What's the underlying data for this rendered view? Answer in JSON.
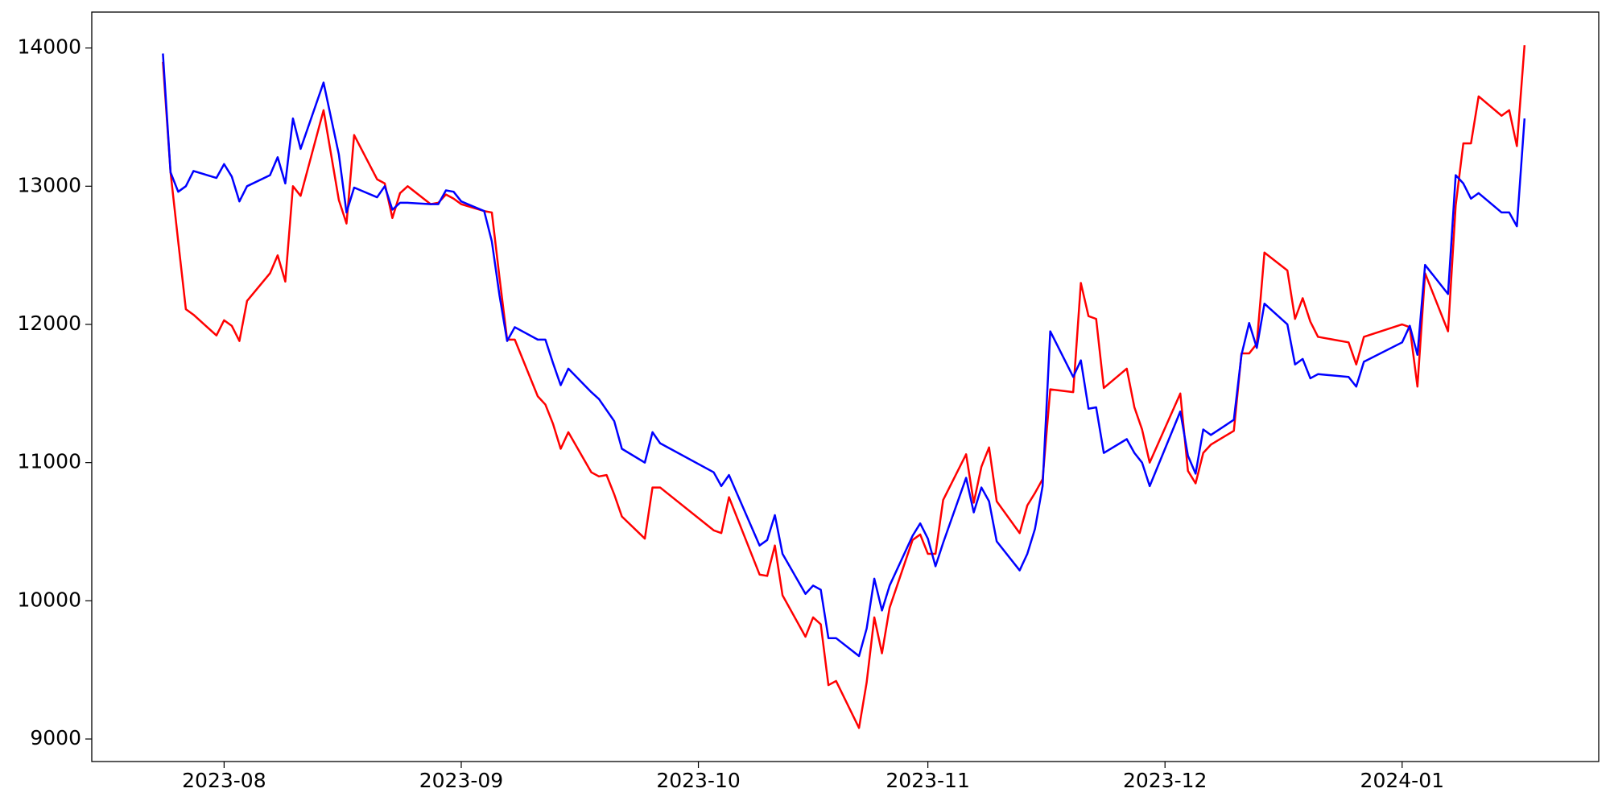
{
  "chart_data": {
    "type": "line",
    "x": [
      -8,
      -7,
      -6,
      -5,
      -4,
      -1,
      0,
      1,
      2,
      3,
      6,
      7,
      8,
      9,
      10,
      13,
      15,
      16,
      17,
      20,
      21,
      22,
      23,
      24,
      27,
      28,
      29,
      30,
      31,
      34,
      35,
      36,
      37,
      38,
      41,
      42,
      43,
      44,
      45,
      48,
      49,
      50,
      51,
      52,
      55,
      56,
      57,
      64,
      65,
      66,
      70,
      71,
      72,
      73,
      76,
      77,
      78,
      79,
      80,
      83,
      84,
      85,
      86,
      87,
      90,
      91,
      92,
      93,
      94,
      97,
      98,
      99,
      100,
      101,
      104,
      105,
      106,
      107,
      108,
      111,
      112,
      113,
      114,
      115,
      118,
      119,
      120,
      121,
      125,
      126,
      127,
      128,
      129,
      132,
      133,
      134,
      135,
      136,
      139,
      140,
      141,
      142,
      143,
      147,
      148,
      149,
      154,
      155,
      156,
      157,
      160,
      161,
      162,
      163,
      164,
      167,
      168,
      169,
      170
    ],
    "series": [
      {
        "color": "#ff0000",
        "values": [
          13900,
          13100,
          12600,
          12110,
          12070,
          11920,
          12030,
          11990,
          11880,
          12170,
          12370,
          12500,
          12310,
          13000,
          12930,
          13550,
          12900,
          12730,
          13370,
          13050,
          13020,
          12770,
          12950,
          13000,
          12870,
          12880,
          12940,
          12910,
          12870,
          12820,
          12810,
          12340,
          11890,
          11890,
          11480,
          11420,
          11280,
          11100,
          11220,
          10930,
          10900,
          10910,
          10770,
          10610,
          10450,
          10820,
          10820,
          10510,
          10490,
          10750,
          10190,
          10180,
          10400,
          10040,
          9740,
          9880,
          9830,
          9390,
          9420,
          9080,
          9410,
          9880,
          9620,
          9950,
          10440,
          10480,
          10340,
          10340,
          10730,
          11060,
          10710,
          10970,
          11110,
          10720,
          10490,
          10690,
          10780,
          10880,
          11530,
          11510,
          12300,
          12060,
          12040,
          11540,
          11680,
          11400,
          11240,
          11000,
          11500,
          10940,
          10850,
          11070,
          11130,
          11230,
          11790,
          11790,
          11860,
          12520,
          12390,
          12040,
          12190,
          12020,
          11910,
          11870,
          11710,
          11910,
          12000,
          11980,
          11550,
          12370,
          11950,
          12860,
          13310,
          13310,
          13650,
          13510,
          13550,
          13290,
          14020
        ]
      },
      {
        "color": "#0000ff",
        "values": [
          13960,
          13100,
          12960,
          13000,
          13110,
          13060,
          13160,
          13070,
          12890,
          13000,
          13080,
          13210,
          13020,
          13490,
          13270,
          13750,
          13230,
          12810,
          12990,
          12920,
          13000,
          12830,
          12880,
          12880,
          12870,
          12870,
          12970,
          12960,
          12890,
          12820,
          12600,
          12210,
          11880,
          11980,
          11890,
          11890,
          11720,
          11560,
          11680,
          11510,
          11460,
          11380,
          11300,
          11100,
          11000,
          11220,
          11140,
          10930,
          10830,
          10910,
          10400,
          10440,
          10620,
          10340,
          10050,
          10110,
          10080,
          9730,
          9730,
          9600,
          9800,
          10160,
          9930,
          10110,
          10470,
          10560,
          10450,
          10250,
          10420,
          10890,
          10640,
          10820,
          10720,
          10430,
          10220,
          10340,
          10520,
          10830,
          11950,
          11620,
          11740,
          11390,
          11400,
          11070,
          11170,
          11070,
          11000,
          10830,
          11370,
          11050,
          10920,
          11240,
          11200,
          11310,
          11780,
          12010,
          11830,
          12150,
          12000,
          11710,
          11750,
          11610,
          11640,
          11620,
          11550,
          11730,
          11870,
          11990,
          11780,
          12430,
          12220,
          13080,
          13020,
          12910,
          12950,
          12810,
          12810,
          12710,
          13490
        ]
      }
    ],
    "xlim": [
      -17.3,
      179.7
    ],
    "xticks": [
      {
        "value": 0,
        "label": "2023-08"
      },
      {
        "value": 31,
        "label": "2023-09"
      },
      {
        "value": 62,
        "label": "2023-10"
      },
      {
        "value": 92,
        "label": "2023-11"
      },
      {
        "value": 123,
        "label": "2023-12"
      },
      {
        "value": 154,
        "label": "2024-01"
      }
    ],
    "ylim": [
      8837,
      14260
    ],
    "yticks": [
      9000,
      10000,
      11000,
      12000,
      13000,
      14000
    ],
    "grid": false
  }
}
